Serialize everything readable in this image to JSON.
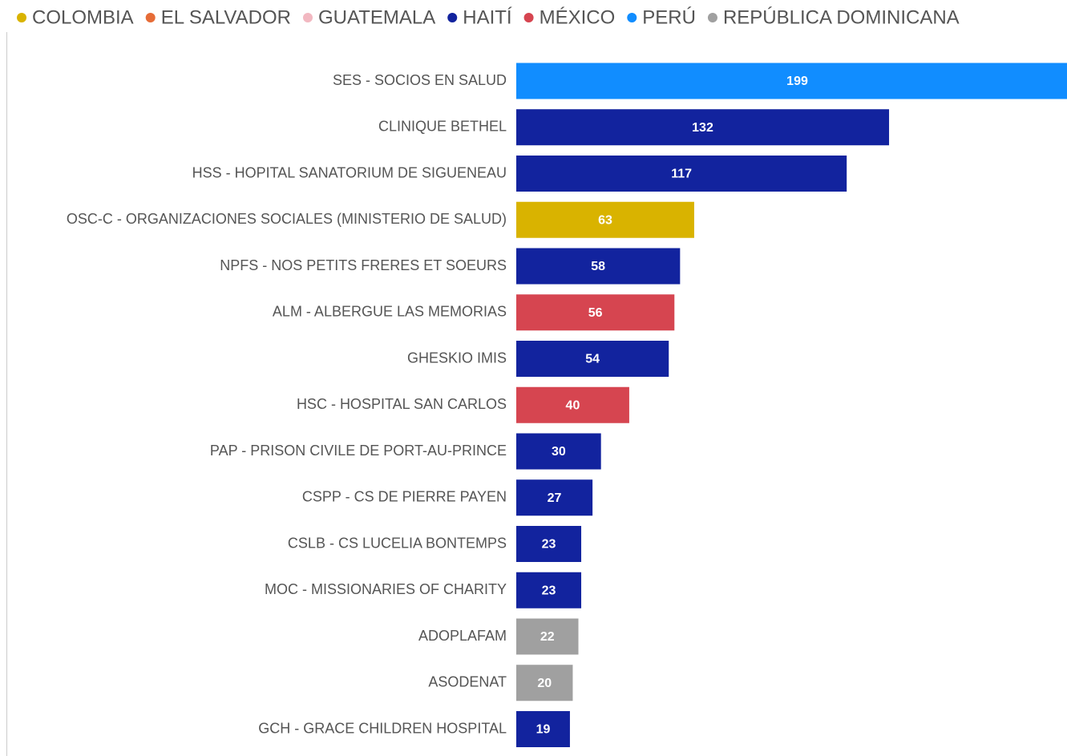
{
  "chart_data": {
    "type": "bar",
    "orientation": "horizontal",
    "categories": [
      "SES - SOCIOS EN SALUD",
      "CLINIQUE BETHEL",
      "HSS - HOPITAL SANATORIUM DE SIGUENEAU",
      "OSC-C - ORGANIZACIONES SOCIALES (MINISTERIO DE SALUD)",
      "NPFS - NOS PETITS FRERES ET SOEURS",
      "ALM - ALBERGUE LAS MEMORIAS",
      "GHESKIO IMIS",
      "HSC - HOSPITAL SAN CARLOS",
      "PAP - PRISON CIVILE DE PORT-AU-PRINCE",
      "CSPP - CS DE PIERRE PAYEN",
      "CSLB - CS LUCELIA BONTEMPS",
      "MOC - MISSIONARIES OF CHARITY",
      "ADOPLAFAM",
      "ASODENAT",
      "GCH - GRACE CHILDREN HOSPITAL"
    ],
    "series": [
      {
        "name": "COLOMBIA",
        "color": "#d9b300",
        "values": [
          null,
          null,
          null,
          63,
          null,
          null,
          null,
          null,
          null,
          null,
          null,
          null,
          null,
          null,
          null
        ]
      },
      {
        "name": "EL SALVADOR",
        "color": "#e66c37",
        "values": [
          null,
          null,
          null,
          null,
          null,
          null,
          null,
          null,
          null,
          null,
          null,
          null,
          null,
          null,
          null
        ]
      },
      {
        "name": "GUATEMALA",
        "color": "#f2b8c1",
        "values": [
          null,
          null,
          null,
          null,
          null,
          null,
          null,
          null,
          null,
          null,
          null,
          null,
          null,
          null,
          null
        ]
      },
      {
        "name": "HAITÍ",
        "color": "#12239e",
        "values": [
          null,
          132,
          117,
          null,
          58,
          null,
          54,
          null,
          30,
          27,
          23,
          23,
          null,
          null,
          19
        ]
      },
      {
        "name": "MÉXICO",
        "color": "#d64550",
        "values": [
          null,
          null,
          null,
          null,
          null,
          56,
          null,
          40,
          null,
          null,
          null,
          null,
          null,
          null,
          null
        ]
      },
      {
        "name": "PERÚ",
        "color": "#118dff",
        "values": [
          199,
          null,
          null,
          null,
          null,
          null,
          null,
          null,
          null,
          null,
          null,
          null,
          null,
          null,
          null
        ]
      },
      {
        "name": "REPÚBLICA DOMINICANA",
        "color": "#a0a0a0",
        "values": [
          null,
          null,
          null,
          null,
          null,
          null,
          null,
          null,
          null,
          null,
          null,
          null,
          22,
          20,
          null
        ]
      }
    ],
    "legend": "top-left"
  }
}
